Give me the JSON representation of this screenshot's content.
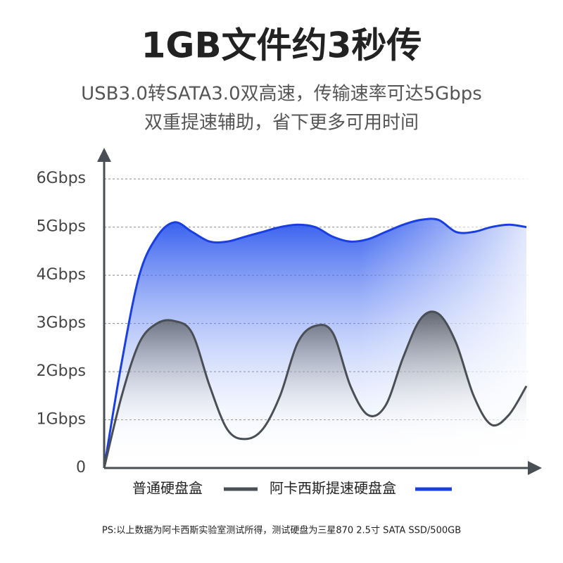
{
  "chart_data": {
    "type": "line",
    "title": "1GB文件约3秒传",
    "subtitle": [
      "USB3.0转SATA3.0双高速，传输速率可达5Gbps",
      "双重提速辅助，省下更多可用时间"
    ],
    "categories": [
      null,
      null,
      null,
      null,
      null,
      null,
      null,
      null,
      null,
      null,
      null,
      null,
      null,
      null,
      null,
      null,
      null,
      null,
      null,
      null,
      null,
      null,
      null,
      null,
      null
    ],
    "series": [
      {
        "name": "普通硬盘盒",
        "color": "#4a4f55",
        "values": [
          0,
          1.5,
          2.6,
          3.0,
          3.05,
          2.8,
          1.7,
          0.8,
          0.6,
          0.8,
          1.5,
          2.6,
          2.95,
          2.8,
          1.7,
          1.1,
          1.3,
          2.3,
          3.1,
          3.2,
          2.6,
          1.5,
          0.9,
          1.1,
          1.7
        ]
      },
      {
        "name": "阿卡西斯提速硬盘盒",
        "color": "#1a3fe0",
        "values": [
          0,
          2.2,
          4.0,
          4.8,
          5.1,
          4.9,
          4.7,
          4.7,
          4.8,
          4.9,
          5.0,
          5.05,
          5.0,
          4.8,
          4.7,
          4.75,
          4.9,
          5.05,
          5.15,
          5.15,
          4.9,
          4.9,
          5.0,
          5.05,
          5.0
        ]
      }
    ],
    "ylim": [
      0,
      6.5
    ],
    "yticks": [
      0,
      {
        "value": 1,
        "label": "1Gbps"
      },
      {
        "value": 2,
        "label": "2Gbps"
      },
      {
        "value": 3,
        "label": "3Gbps"
      },
      {
        "value": 4,
        "label": "4Gbps"
      },
      {
        "value": 5,
        "label": "5Gbps"
      },
      {
        "value": 6,
        "label": "6Gbps"
      }
    ],
    "grid": true,
    "note": "PS:以上数据为阿卡西斯实验室测试所得，测试硬盘为三星870  2.5寸  SATA  SSD/500GB"
  }
}
